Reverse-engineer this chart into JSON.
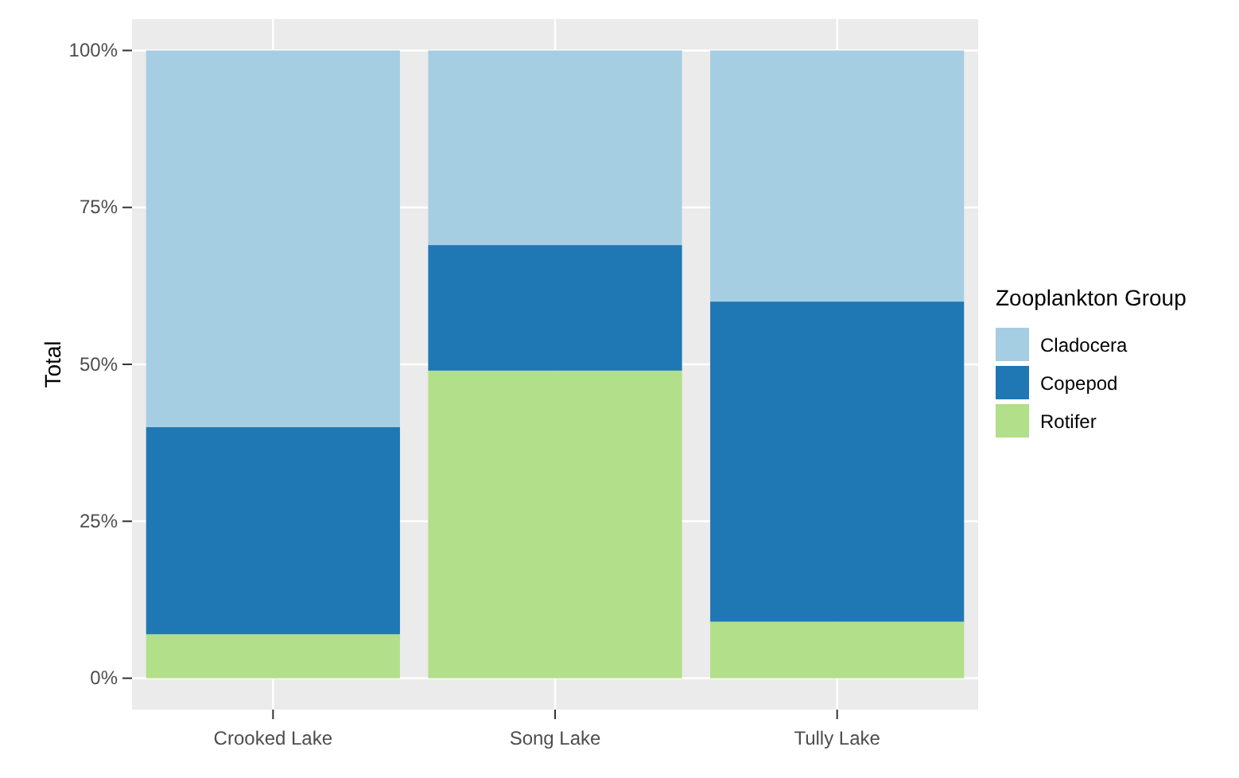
{
  "chart_data": {
    "type": "bar",
    "stacked": true,
    "ylabel": "Total",
    "legend_title": "Zooplankton Group",
    "legend": "right",
    "grid": true,
    "categories": [
      "Crooked Lake",
      "Song Lake",
      "Tully Lake"
    ],
    "series": [
      {
        "name": "Rotifer",
        "color": "#b2df8a",
        "values": [
          7,
          49,
          9
        ]
      },
      {
        "name": "Copepod",
        "color": "#1f78b4",
        "values": [
          33,
          20,
          51
        ]
      },
      {
        "name": "Cladocera",
        "color": "#a6cee3",
        "values": [
          60,
          31,
          40
        ]
      }
    ],
    "ylim": [
      -5,
      105
    ],
    "yticks": [
      {
        "value": 0,
        "label": "0%"
      },
      {
        "value": 25,
        "label": "25%"
      },
      {
        "value": 50,
        "label": "50%"
      },
      {
        "value": 75,
        "label": "75%"
      },
      {
        "value": 100,
        "label": "100%"
      }
    ]
  }
}
